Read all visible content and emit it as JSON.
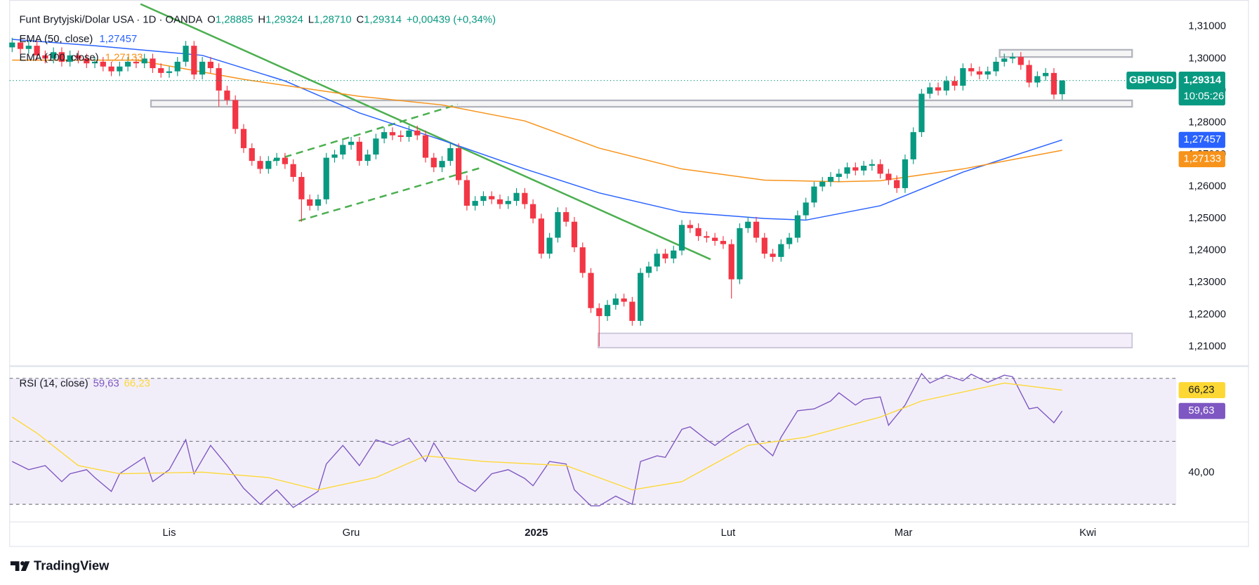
{
  "header": {
    "title": "Funt Brytyjski/Dolar USA · 1D · OANDA",
    "ohlc": [
      {
        "key": "O",
        "value": "1,28885"
      },
      {
        "key": "H",
        "value": "1,29324"
      },
      {
        "key": "L",
        "value": "1,28710"
      },
      {
        "key": "C",
        "value": "1,29314"
      }
    ],
    "change": "+0,00439 (+0,34%)"
  },
  "chart_data": {
    "type": "candlestick",
    "symbol": "GBPUSD",
    "countdown": "10:05:26",
    "up_color": "#089981",
    "down_color": "#f23645",
    "xlim": [
      -0.3,
      140.8
    ],
    "xticks": [
      {
        "value": 19,
        "label": "Lis"
      },
      {
        "value": 41,
        "label": "Gru"
      },
      {
        "value": 63.4,
        "label": "2025"
      },
      {
        "value": 86.6,
        "label": "Lut"
      },
      {
        "value": 107.8,
        "label": "Mar"
      },
      {
        "value": 130.1,
        "label": "Kwi"
      }
    ],
    "ylim": [
      1.2041,
      1.3183
    ],
    "yticks": [
      {
        "value": 1.21,
        "label": "1,21000"
      },
      {
        "value": 1.22,
        "label": "1,22000"
      },
      {
        "value": 1.23,
        "label": "1,23000"
      },
      {
        "value": 1.24,
        "label": "1,24000"
      },
      {
        "value": 1.25,
        "label": "1,25000"
      },
      {
        "value": 1.26,
        "label": "1,26000"
      },
      {
        "value": 1.27,
        "label": "1,27000"
      },
      {
        "value": 1.28,
        "label": "1,28000"
      },
      {
        "value": 1.29,
        "label": "1,29000"
      },
      {
        "value": 1.3,
        "label": "1,30000"
      },
      {
        "value": 1.31,
        "label": "1,31000"
      }
    ],
    "candles": {
      "open": [
        1.3035,
        1.305,
        1.303,
        1.304,
        1.301,
        1.3,
        1.302,
        1.299,
        1.301,
        1.3,
        1.2985,
        1.299,
        1.2975,
        1.296,
        1.2975,
        1.299,
        1.2985,
        1.3,
        1.297,
        1.2955,
        1.296,
        1.299,
        1.304,
        1.295,
        1.299,
        1.297,
        1.29,
        1.287,
        1.278,
        1.272,
        1.268,
        1.2655,
        1.268,
        1.269,
        1.267,
        1.263,
        1.256,
        1.254,
        1.256,
        1.269,
        1.27,
        1.273,
        1.274,
        1.268,
        1.27,
        1.275,
        1.277,
        1.276,
        1.2755,
        1.2775,
        1.276,
        1.269,
        1.266,
        1.268,
        1.272,
        1.262,
        1.254,
        1.2555,
        1.257,
        1.256,
        1.2545,
        1.2555,
        1.258,
        1.2545,
        1.25,
        1.239,
        1.244,
        1.252,
        1.249,
        1.241,
        1.233,
        1.222,
        1.2195,
        1.223,
        1.225,
        1.224,
        1.218,
        1.233,
        1.235,
        1.239,
        1.2375,
        1.24,
        1.248,
        1.247,
        1.2445,
        1.244,
        1.243,
        1.242,
        1.231,
        1.247,
        1.249,
        1.244,
        1.239,
        1.238,
        1.242,
        1.244,
        1.251,
        1.255,
        1.26,
        1.2615,
        1.263,
        1.264,
        1.266,
        1.265,
        1.2665,
        1.267,
        1.264,
        1.262,
        1.2595,
        1.2685,
        1.277,
        1.289,
        1.291,
        1.29,
        1.293,
        1.2915,
        1.297,
        1.296,
        1.295,
        1.296,
        1.299,
        1.3,
        1.3005,
        1.298,
        1.2925,
        1.2945,
        1.2955,
        1.28885
      ],
      "high": [
        1.3065,
        1.3065,
        1.3055,
        1.3055,
        1.3025,
        1.3035,
        1.3035,
        1.3025,
        1.3025,
        1.3015,
        1.3005,
        1.3005,
        1.299,
        1.299,
        1.3005,
        1.3005,
        1.3015,
        1.3015,
        1.2985,
        1.2975,
        1.3005,
        1.3055,
        1.3055,
        1.3005,
        1.3005,
        1.2985,
        1.2915,
        1.2885,
        1.2795,
        1.2735,
        1.2695,
        1.2695,
        1.2705,
        1.2705,
        1.2685,
        1.2645,
        1.2575,
        1.2575,
        1.2705,
        1.2715,
        1.2745,
        1.2755,
        1.2755,
        1.2715,
        1.2765,
        1.2785,
        1.2785,
        1.2775,
        1.279,
        1.279,
        1.2775,
        1.2705,
        1.2695,
        1.2735,
        1.2735,
        1.2635,
        1.257,
        1.2585,
        1.2585,
        1.2575,
        1.257,
        1.2595,
        1.2595,
        1.256,
        1.2515,
        1.2455,
        1.2535,
        1.2535,
        1.2505,
        1.2425,
        1.2345,
        1.2235,
        1.2245,
        1.2265,
        1.2265,
        1.2255,
        1.2345,
        1.2365,
        1.2405,
        1.2405,
        1.2415,
        1.2495,
        1.2495,
        1.2485,
        1.246,
        1.2455,
        1.2445,
        1.2435,
        1.2485,
        1.2505,
        1.2505,
        1.2455,
        1.2405,
        1.2435,
        1.2455,
        1.2525,
        1.2565,
        1.2615,
        1.263,
        1.2645,
        1.2655,
        1.2675,
        1.2675,
        1.268,
        1.2685,
        1.2685,
        1.2655,
        1.2635,
        1.27,
        1.2785,
        1.2905,
        1.2925,
        1.2925,
        1.2945,
        1.2945,
        1.2985,
        1.2985,
        1.2975,
        1.2975,
        1.3005,
        1.3015,
        1.3018,
        1.302,
        1.2995,
        1.296,
        1.297,
        1.297,
        1.29324
      ],
      "low": [
        1.302,
        1.3015,
        1.3015,
        1.2995,
        1.2985,
        1.2985,
        1.2975,
        1.2975,
        1.2985,
        1.297,
        1.297,
        1.296,
        1.2945,
        1.2945,
        1.296,
        1.297,
        1.297,
        1.2955,
        1.294,
        1.294,
        1.2945,
        1.2975,
        1.2935,
        1.2935,
        1.2955,
        1.285,
        1.2855,
        1.2765,
        1.2705,
        1.2665,
        1.264,
        1.264,
        1.2665,
        1.2655,
        1.2615,
        1.249,
        1.2525,
        1.2525,
        1.2545,
        1.2675,
        1.2685,
        1.2715,
        1.2665,
        1.2665,
        1.2685,
        1.2735,
        1.2745,
        1.274,
        1.274,
        1.2745,
        1.2675,
        1.2645,
        1.2645,
        1.2665,
        1.2605,
        1.2525,
        1.2525,
        1.254,
        1.2545,
        1.253,
        1.253,
        1.254,
        1.253,
        1.2485,
        1.2375,
        1.2375,
        1.2425,
        1.2475,
        1.2395,
        1.2315,
        1.2205,
        1.21,
        1.218,
        1.2215,
        1.2225,
        1.2165,
        1.2165,
        1.2315,
        1.2335,
        1.236,
        1.236,
        1.2385,
        1.2455,
        1.243,
        1.2425,
        1.2415,
        1.2405,
        1.225,
        1.2295,
        1.2455,
        1.2425,
        1.2375,
        1.2365,
        1.2365,
        1.2405,
        1.2425,
        1.2495,
        1.2535,
        1.2585,
        1.26,
        1.2615,
        1.2625,
        1.2635,
        1.2635,
        1.265,
        1.2625,
        1.2605,
        1.258,
        1.258,
        1.267,
        1.2755,
        1.2875,
        1.2885,
        1.2885,
        1.29,
        1.29,
        1.2945,
        1.2935,
        1.2935,
        1.2945,
        1.2975,
        1.2985,
        1.2965,
        1.291,
        1.291,
        1.293,
        1.2873,
        1.2871
      ],
      "close": [
        1.305,
        1.303,
        1.304,
        1.301,
        1.3,
        1.302,
        1.299,
        1.301,
        1.3,
        1.2985,
        1.299,
        1.2975,
        1.296,
        1.2975,
        1.299,
        1.2985,
        1.3,
        1.297,
        1.2955,
        1.296,
        1.299,
        1.304,
        1.295,
        1.299,
        1.297,
        1.29,
        1.287,
        1.278,
        1.272,
        1.268,
        1.2655,
        1.268,
        1.269,
        1.267,
        1.263,
        1.256,
        1.254,
        1.256,
        1.269,
        1.27,
        1.273,
        1.274,
        1.268,
        1.27,
        1.275,
        1.277,
        1.276,
        1.2755,
        1.2775,
        1.276,
        1.269,
        1.266,
        1.268,
        1.272,
        1.262,
        1.254,
        1.2555,
        1.257,
        1.256,
        1.2545,
        1.2555,
        1.258,
        1.2545,
        1.25,
        1.239,
        1.244,
        1.252,
        1.249,
        1.241,
        1.233,
        1.222,
        1.2195,
        1.223,
        1.225,
        1.224,
        1.218,
        1.233,
        1.235,
        1.239,
        1.2375,
        1.24,
        1.248,
        1.247,
        1.2445,
        1.244,
        1.243,
        1.242,
        1.231,
        1.247,
        1.249,
        1.244,
        1.239,
        1.238,
        1.242,
        1.244,
        1.251,
        1.255,
        1.26,
        1.2615,
        1.263,
        1.264,
        1.266,
        1.265,
        1.2665,
        1.267,
        1.264,
        1.262,
        1.2595,
        1.2685,
        1.277,
        1.289,
        1.291,
        1.29,
        1.293,
        1.2915,
        1.297,
        1.296,
        1.295,
        1.296,
        1.299,
        1.3,
        1.3005,
        1.298,
        1.2925,
        1.2945,
        1.2955,
        1.28875,
        1.29314
      ]
    },
    "overlays": [
      {
        "name": "EMA (50, close)",
        "color": "#2962ff",
        "x": [
          0,
          10,
          23,
          33,
          42,
          52,
          62,
          71,
          81,
          91,
          96,
          105,
          115,
          127
        ],
        "values": [
          1.306,
          1.304,
          1.301,
          1.293,
          1.283,
          1.2745,
          1.2655,
          1.258,
          1.252,
          1.25,
          1.2495,
          1.254,
          1.2645,
          1.27457
        ],
        "last_label": "1,27457"
      },
      {
        "name": "EMA (100, close)",
        "color": "#f7931a",
        "x": [
          0,
          15,
          28,
          42,
          52,
          62,
          71,
          81,
          91,
          100,
          105,
          115,
          127
        ],
        "values": [
          1.2995,
          1.2995,
          1.2935,
          1.2882,
          1.2855,
          1.2805,
          1.272,
          1.2655,
          1.262,
          1.2615,
          1.2618,
          1.2655,
          1.27133
        ],
        "last_label": "1,27133"
      }
    ],
    "rsi": {
      "name": "RSI (14, close)",
      "ylim": [
        24.4,
        73.6
      ],
      "yticks": [
        {
          "value": 40,
          "label": "40,00"
        }
      ],
      "levels": [
        70,
        50,
        30
      ],
      "series": [
        {
          "color": "#7e57c2",
          "x": [
            0,
            2,
            4,
            6,
            7,
            9,
            10,
            12,
            13,
            16,
            17,
            19,
            21,
            22,
            24,
            26,
            28,
            30,
            32,
            34,
            37,
            38,
            40,
            42,
            44,
            46,
            48,
            50,
            51,
            54,
            56,
            58,
            60,
            62,
            63,
            65,
            67,
            68,
            70,
            71,
            73,
            75,
            76,
            78,
            79,
            81,
            82,
            84,
            85,
            87,
            89,
            90,
            92,
            93,
            95,
            97,
            99,
            100,
            102,
            103,
            105,
            106,
            108,
            110,
            111,
            113,
            115,
            116,
            118,
            120,
            121,
            123,
            124,
            126,
            127
          ],
          "values": [
            43.6,
            41.0,
            42.3,
            37.2,
            39.7,
            41.0,
            38.5,
            34.1,
            39.7,
            44.9,
            37.2,
            41.0,
            50.5,
            39.7,
            48.7,
            42.3,
            35.1,
            30.0,
            34.6,
            29.0,
            34.1,
            42.8,
            48.7,
            42.3,
            50.5,
            48.7,
            51.0,
            43.6,
            49.5,
            37.2,
            34.1,
            39.7,
            41.0,
            38.2,
            35.9,
            43.6,
            42.8,
            34.6,
            29.5,
            29.5,
            32.6,
            30.0,
            43.6,
            45.4,
            44.9,
            53.8,
            54.6,
            50.5,
            48.7,
            52.6,
            55.6,
            50.0,
            45.4,
            51.3,
            59.7,
            60.3,
            62.8,
            65.4,
            61.5,
            63.3,
            64.1,
            55.1,
            61.5,
            71.5,
            68.5,
            71.0,
            69.2,
            71.3,
            68.7,
            71.0,
            70.5,
            60.3,
            60.8,
            55.9,
            59.63
          ],
          "last_label": "59,63"
        },
        {
          "color": "#fdd835",
          "x": [
            0,
            3,
            8,
            13,
            23,
            31,
            37,
            44,
            50,
            57,
            67,
            75,
            81,
            89,
            96,
            105,
            110,
            120,
            127
          ],
          "values": [
            57.7,
            52.6,
            42.3,
            39.7,
            40.2,
            38.5,
            34.6,
            38.5,
            45.4,
            43.6,
            42.3,
            34.6,
            37.2,
            48.7,
            51.3,
            57.7,
            62.8,
            68.5,
            66.23
          ],
          "last_label": "66,23"
        }
      ]
    }
  },
  "brand": "TradingView"
}
